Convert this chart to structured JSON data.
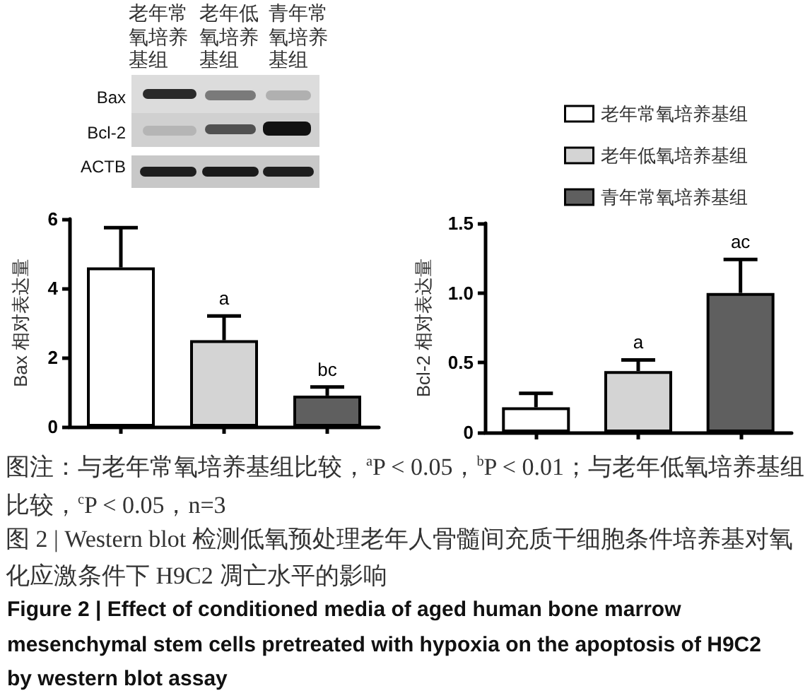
{
  "chart_data": [
    {
      "type": "bar",
      "ylabel": "Bax 相对表达量",
      "categories": [
        null,
        null,
        null
      ],
      "values": [
        4.6,
        2.5,
        0.9
      ],
      "colors": [
        "#ffffff",
        "#d4d4d4",
        "#5f5f5f"
      ],
      "errors": [
        [
          4.6,
          5.75
        ],
        [
          2.5,
          3.2
        ],
        [
          0.9,
          1.15
        ]
      ],
      "value_labels": [
        null,
        "a",
        "bc"
      ],
      "ylim": [
        0,
        6
      ],
      "yticks": [
        0,
        2,
        4,
        6
      ],
      "annotations": [
        "老年常氧培养基组",
        "老年低氧培养基组",
        "青年常氧培养基组",
        "Bax",
        "Bcl-2",
        "ACTB",
        "图注：与老年常氧培养基组比较，$^{a}$P < 0.05，$^{b}$P < 0.01；与老年低氧培养基组比较，$^{c}$P < 0.05，n=3",
        "图 2 | Western blot 检测低氧预处理老年人骨髓间充质干细胞条件培养基对氧化应激条件下 H9C2 凋亡水平的影响",
        "Figure 2 | Effect of conditioned media of aged human bone marrow mesenchymal stem cells pretreated with hypoxia on the apoptosis of H9C2 by western blot assay"
      ]
    },
    {
      "type": "bar",
      "ylabel": "Bcl-2 相对表达量",
      "categories": [
        null,
        null,
        null
      ],
      "ylim": [
        0,
        1.5
      ],
      "yticks": [
        0,
        0.5,
        {
          "value": 1,
          "label": "1.0"
        },
        1.5
      ],
      "legend": "top",
      "series": [
        {
          "name": "老年常氧培养基组",
          "color": "#ffffff",
          "values": [
            0.18,
            null,
            null
          ],
          "errors": [
            [
              0.18,
              0.28
            ],
            null,
            null
          ]
        },
        {
          "name": "老年低氧培养基组",
          "color": "#d4d4d4",
          "values": [
            null,
            0.44,
            null
          ],
          "errors": [
            null,
            [
              0.44,
              0.52
            ],
            null
          ],
          "value_labels": [
            null,
            "a",
            null
          ]
        },
        {
          "name": "青年常氧培养基组",
          "color": "#5f5f5f",
          "values": [
            null,
            null,
            1.0
          ],
          "errors": [
            null,
            null,
            [
              1.0,
              1.24
            ]
          ],
          "value_labels": [
            null,
            null,
            "ac"
          ]
        }
      ]
    }
  ]
}
